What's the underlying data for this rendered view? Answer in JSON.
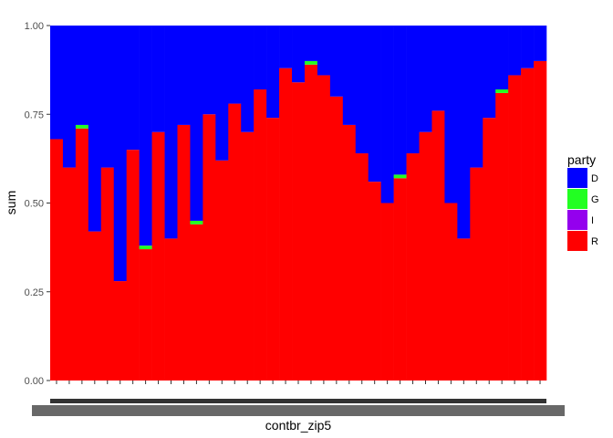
{
  "chart_data": {
    "type": "bar",
    "stacked": "fill",
    "xlabel": "contbr_zip5",
    "ylabel": "sum",
    "ylim": [
      0,
      1
    ],
    "y_ticks": [
      "0.00",
      "0.25",
      "0.50",
      "0.75",
      "1.00"
    ],
    "grid": false,
    "legend": {
      "title": "party",
      "position": "right",
      "entries": [
        {
          "key": "D",
          "color": "#0000ff"
        },
        {
          "key": "G",
          "color": "#22ff22"
        },
        {
          "key": "I",
          "color": "#9400ee"
        },
        {
          "key": "R",
          "color": "#ff0000"
        }
      ]
    },
    "series": [
      {
        "name": "D",
        "color": "#0000ff",
        "values": [
          0.32,
          0.4,
          0.28,
          0.58,
          0.4,
          0.72,
          0.35,
          0.62,
          0.3,
          0.6,
          0.28,
          0.55,
          0.25,
          0.38,
          0.22,
          0.3,
          0.18,
          0.26,
          0.12,
          0.16,
          0.1,
          0.14,
          0.2,
          0.28,
          0.36,
          0.44,
          0.5,
          0.42,
          0.36,
          0.3,
          0.24,
          0.5,
          0.6,
          0.4,
          0.26,
          0.18,
          0.14,
          0.12,
          0.1
        ]
      },
      {
        "name": "G",
        "color": "#22ff22",
        "values": [
          0.0,
          0.0,
          0.01,
          0.0,
          0.0,
          0.0,
          0.0,
          0.01,
          0.0,
          0.0,
          0.0,
          0.01,
          0.0,
          0.0,
          0.0,
          0.0,
          0.0,
          0.0,
          0.0,
          0.0,
          0.01,
          0.0,
          0.0,
          0.0,
          0.0,
          0.0,
          0.0,
          0.01,
          0.0,
          0.0,
          0.0,
          0.0,
          0.0,
          0.0,
          0.0,
          0.01,
          0.0,
          0.0,
          0.0
        ]
      },
      {
        "name": "I",
        "color": "#9400ee",
        "values": [
          0.0,
          0.0,
          0.0,
          0.0,
          0.0,
          0.0,
          0.0,
          0.0,
          0.0,
          0.0,
          0.0,
          0.0,
          0.0,
          0.0,
          0.0,
          0.0,
          0.0,
          0.0,
          0.0,
          0.0,
          0.0,
          0.0,
          0.0,
          0.0,
          0.0,
          0.0,
          0.0,
          0.0,
          0.0,
          0.0,
          0.0,
          0.0,
          0.0,
          0.0,
          0.0,
          0.0,
          0.0,
          0.0,
          0.0
        ]
      },
      {
        "name": "R",
        "color": "#ff0000",
        "values": [
          0.68,
          0.6,
          0.71,
          0.42,
          0.6,
          0.28,
          0.65,
          0.37,
          0.7,
          0.4,
          0.72,
          0.44,
          0.75,
          0.62,
          0.78,
          0.7,
          0.82,
          0.74,
          0.88,
          0.84,
          0.89,
          0.86,
          0.8,
          0.72,
          0.64,
          0.56,
          0.5,
          0.57,
          0.64,
          0.7,
          0.76,
          0.5,
          0.4,
          0.6,
          0.74,
          0.81,
          0.86,
          0.88,
          0.9
        ]
      }
    ]
  }
}
